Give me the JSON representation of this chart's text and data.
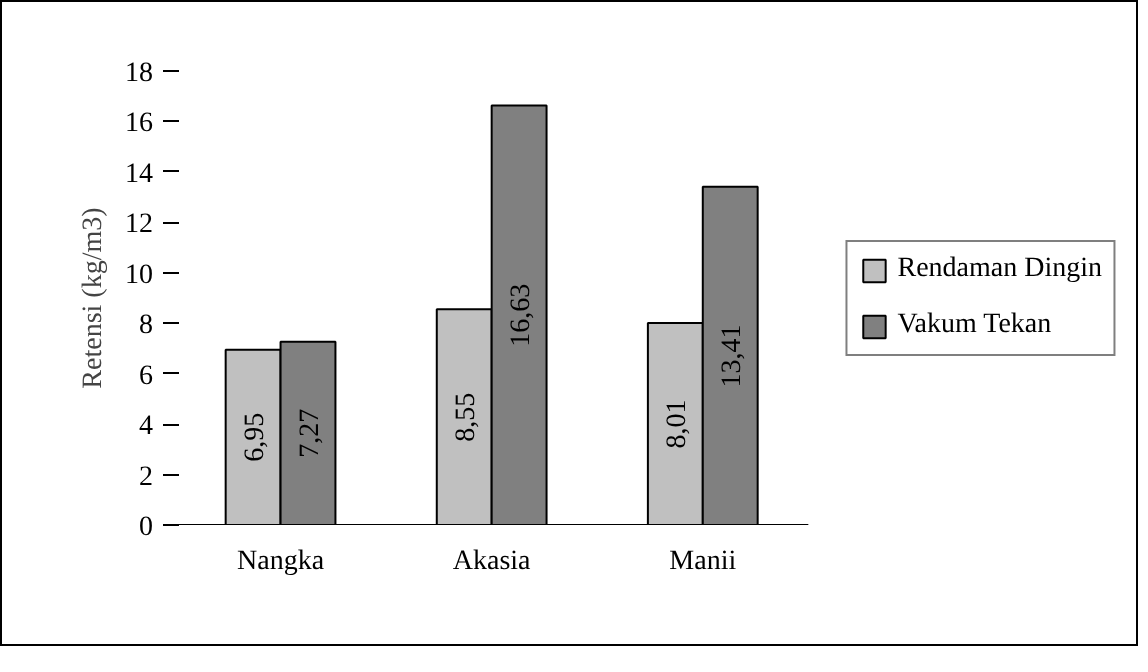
{
  "chart_data": {
    "type": "bar",
    "ylabel": "Retensi (kg/m3)",
    "categories": [
      "Nangka",
      "Akasia",
      "Manii"
    ],
    "series": [
      {
        "name": "Rendaman Dingin",
        "color": "#c0c0c0",
        "values": [
          6.95,
          8.55,
          8.01
        ],
        "value_labels": [
          "6,95",
          "8,55",
          "8,01"
        ]
      },
      {
        "name": "Vakum Tekan",
        "color": "#808080",
        "values": [
          7.27,
          16.63,
          13.41
        ],
        "value_labels": [
          "7,27",
          "16,63",
          "13,41"
        ]
      }
    ],
    "ylim": [
      0,
      18
    ],
    "yticks": [
      0,
      2,
      4,
      6,
      8,
      10,
      12,
      14,
      16,
      18
    ],
    "grid": false,
    "legend": "right"
  }
}
